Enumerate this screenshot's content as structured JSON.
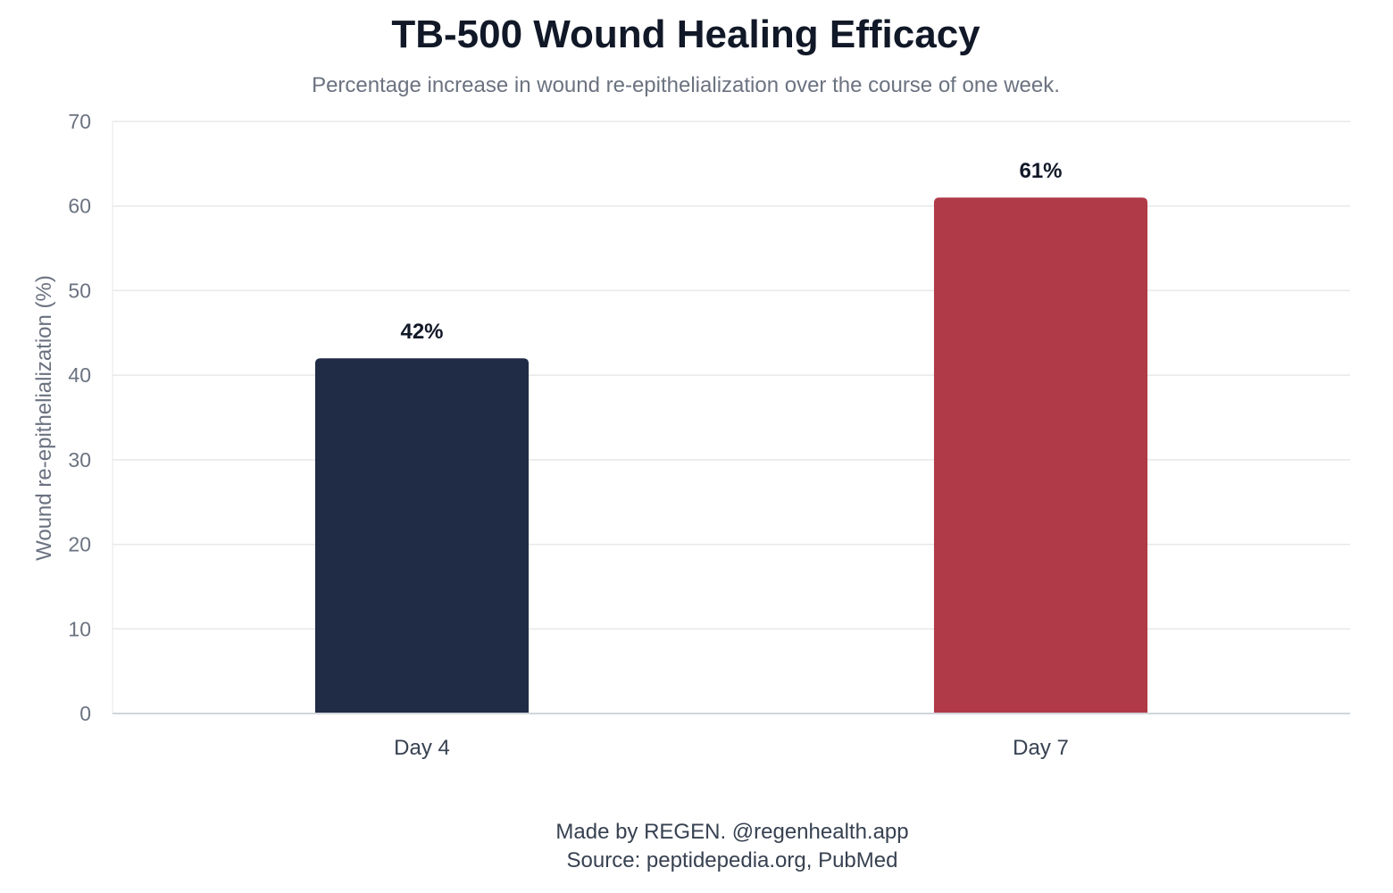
{
  "chart_data": {
    "type": "bar",
    "title": "TB-500 Wound Healing Efficacy",
    "subtitle": "Percentage increase in wound re-epithelialization over the course of one week.",
    "ylabel": "Wound re-epithelialization (%)",
    "xlabel": "",
    "categories": [
      "Day 4",
      "Day 7"
    ],
    "values": [
      42,
      61
    ],
    "value_labels": [
      "42%",
      "61%"
    ],
    "colors": [
      "#202b45",
      "#b03a48"
    ],
    "ylim": [
      0,
      70
    ],
    "yticks": [
      0,
      10,
      20,
      30,
      40,
      50,
      60,
      70
    ],
    "grid": true,
    "legend": "none"
  },
  "footer": {
    "made_by": "Made by REGEN. @regenhealth.app",
    "source": "Source: peptidepedia.org, PubMed"
  }
}
